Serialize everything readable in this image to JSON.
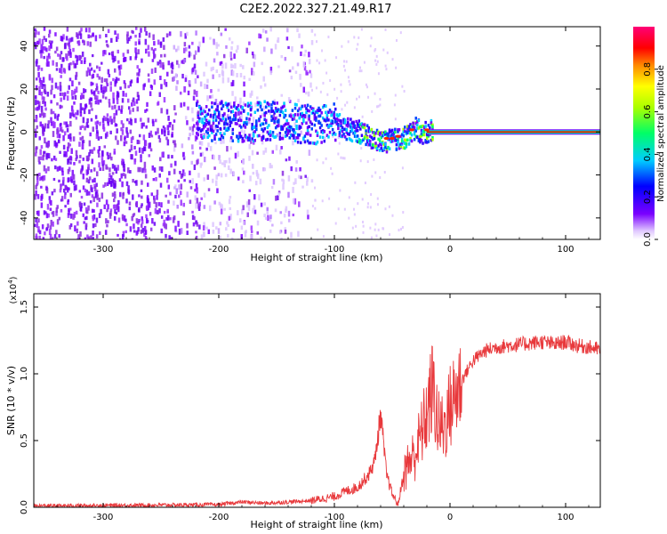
{
  "figure_title": "C2E2.2022.327.21.49.R17",
  "chart_data": [
    {
      "type": "heatmap",
      "xlabel": "Height of straight line (km)",
      "ylabel": "Frequency (Hz)",
      "xlim": [
        -360,
        130
      ],
      "ylim": [
        -50,
        49
      ],
      "xticks": [
        -300,
        -200,
        -100,
        0,
        100
      ],
      "yticks": [
        -40,
        -20,
        0,
        20,
        40
      ],
      "colorbar": {
        "label": "Normalized spectral amplitude",
        "range": [
          0,
          1
        ],
        "ticks": [
          0.0,
          0.2,
          0.4,
          0.6,
          0.8
        ],
        "colormap": "rainbow: white-violet-blue-cyan-green-yellow-orange-red-magenta"
      },
      "description_points": {
        "noise_region_x": [
          -360,
          -120
        ],
        "signal_track": {
          "x": [
            -220,
            -200,
            -180,
            -160,
            -140,
            -120,
            -100,
            -90,
            -80,
            -70,
            -60,
            -50,
            -40,
            -35,
            -30,
            -25,
            -20,
            -15,
            -10,
            0,
            50,
            130
          ],
          "freq": [
            5,
            6,
            5,
            6,
            5,
            4,
            5,
            2,
            1,
            -2,
            -4,
            -3,
            -2,
            0,
            3,
            -1,
            1,
            2,
            0,
            0,
            0,
            0
          ]
        }
      }
    },
    {
      "type": "line",
      "xlabel": "Height of straight line (km)",
      "ylabel": "SNR (10 * v/v)",
      "multiplier_label": "(x10",
      "multiplier_exp": "4",
      "xlim": [
        -360,
        130
      ],
      "ylim": [
        0,
        1.6
      ],
      "xticks": [
        -300,
        -200,
        -100,
        0,
        100
      ],
      "yticks": [
        0.0,
        0.5,
        1.0,
        1.5
      ],
      "ytick_labels": [
        "0.0",
        "0.5",
        "1.0",
        "1.5"
      ],
      "series": [
        {
          "color": "#e8383b",
          "x": [
            -360,
            -200,
            -180,
            -160,
            -140,
            -120,
            -100,
            -90,
            -80,
            -70,
            -65,
            -60,
            -55,
            -50,
            -45,
            -40,
            -35,
            -30,
            -25,
            -20,
            -15,
            -10,
            -5,
            0,
            10,
            20,
            30,
            40,
            50,
            60,
            70,
            80,
            90,
            100,
            110,
            120,
            130
          ],
          "y": [
            0.01,
            0.02,
            0.04,
            0.03,
            0.04,
            0.05,
            0.08,
            0.12,
            0.15,
            0.25,
            0.35,
            0.7,
            0.25,
            0.1,
            0.02,
            0.25,
            0.35,
            0.4,
            0.55,
            0.7,
            0.9,
            0.6,
            0.6,
            0.75,
            0.95,
            1.1,
            1.17,
            1.2,
            1.21,
            1.22,
            1.23,
            1.24,
            1.22,
            1.24,
            1.21,
            1.2,
            1.18
          ]
        }
      ]
    }
  ]
}
